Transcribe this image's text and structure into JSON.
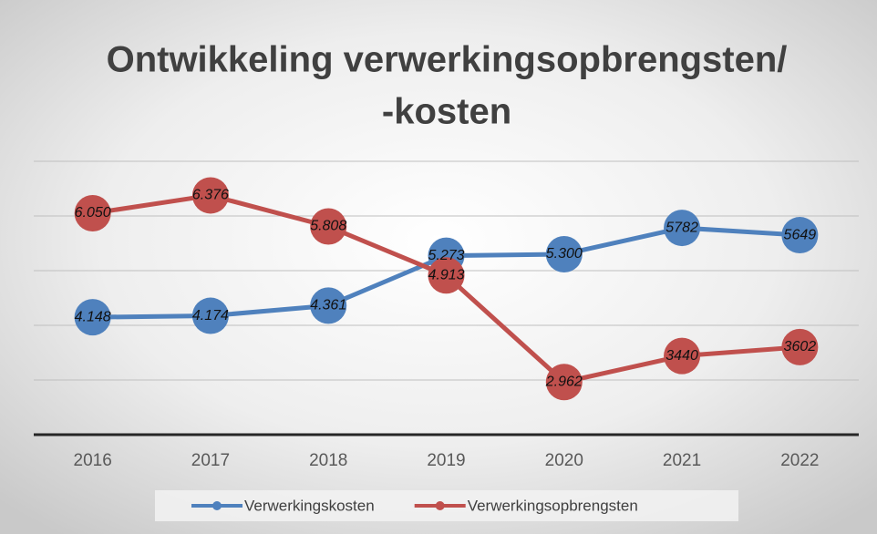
{
  "chart_data": {
    "type": "line",
    "title": [
      "Ontwikkeling verwerkingsopbrengsten/",
      "-kosten"
    ],
    "categories": [
      "2016",
      "2017",
      "2018",
      "2019",
      "2020",
      "2021",
      "2022"
    ],
    "series": [
      {
        "name": "Verwerkingskosten",
        "color": "#4f81bd",
        "values": [
          4148,
          4174,
          4361,
          5273,
          5300,
          5782,
          5649
        ],
        "value_labels": [
          "4.148",
          "4.174",
          "4.361",
          "5.273",
          "5.300",
          "5782",
          "5649"
        ]
      },
      {
        "name": "Verwerkingsopbrengsten",
        "color": "#c0504d",
        "values": [
          6050,
          6376,
          5808,
          4913,
          2962,
          3440,
          3602
        ],
        "value_labels": [
          "6.050",
          "6.376",
          "5.808",
          "4.913",
          "2.962",
          "3440",
          "3602"
        ]
      }
    ],
    "ylim": [
      2000,
      7000
    ],
    "gridlines": [
      3000,
      4000,
      5000,
      6000,
      7000
    ],
    "grid": true,
    "legend": "bottom"
  }
}
